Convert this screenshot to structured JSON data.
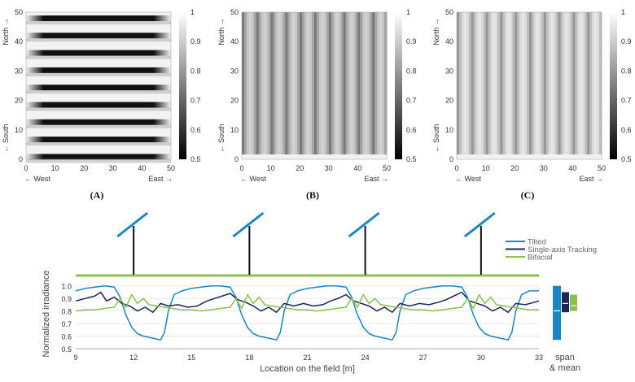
{
  "colors": {
    "tilted": "#1b86c2",
    "tracking": "#1c2557",
    "bifacial": "#8cc04e",
    "ground_line": "#8cc04e",
    "post": "#111111"
  },
  "chart_data": [
    {
      "type": "heatmap",
      "panel": "(A)",
      "pattern": "horizontal-rows",
      "xlim": [
        0,
        50
      ],
      "ylim": [
        0,
        50
      ],
      "xticks": [
        "0",
        "10",
        "20",
        "30",
        "40",
        "50"
      ],
      "yticks": [
        "0",
        "10",
        "20",
        "30",
        "40",
        "50"
      ],
      "x_left_label": "← West",
      "x_right_label": "East →",
      "y_top_label": "North →",
      "y_bottom_label": "← South",
      "colorbar": {
        "range": [
          0.5,
          1
        ],
        "ticks": [
          "1",
          "0.9",
          "0.8",
          "0.7",
          "0.6",
          "0.5"
        ]
      }
    },
    {
      "type": "heatmap",
      "panel": "(B)",
      "pattern": "vertical-columns",
      "xlim": [
        0,
        50
      ],
      "ylim": [
        0,
        50
      ],
      "xticks": [
        "0",
        "10",
        "20",
        "30",
        "40",
        "50"
      ],
      "yticks": [
        "0",
        "10",
        "20",
        "30",
        "40",
        "50"
      ],
      "x_left_label": "← West",
      "x_right_label": "East →",
      "y_top_label": "North →",
      "y_bottom_label": "← South",
      "colorbar": {
        "range": [
          0.5,
          1
        ],
        "ticks": [
          "1",
          "0.9",
          "0.8",
          "0.7",
          "0.6",
          "0.5"
        ]
      }
    },
    {
      "type": "heatmap",
      "panel": "(C)",
      "pattern": "vertical-columns-light",
      "xlim": [
        0,
        50
      ],
      "ylim": [
        0,
        50
      ],
      "xticks": [
        "0",
        "10",
        "20",
        "30",
        "40",
        "50"
      ],
      "yticks": [
        "0",
        "10",
        "20",
        "30",
        "40",
        "50"
      ],
      "x_left_label": "← West",
      "x_right_label": "East →",
      "y_top_label": "North →",
      "y_bottom_label": "← South",
      "colorbar": {
        "range": [
          0.5,
          1
        ],
        "ticks": [
          "1",
          "0.9",
          "0.8",
          "0.7",
          "0.6",
          "0.5"
        ]
      }
    },
    {
      "type": "line",
      "xlabel": "Location on the field [m]",
      "ylabel": "Normalized irradiance",
      "xlim": [
        9,
        33
      ],
      "ylim": [
        0.5,
        1.05
      ],
      "xticks": [
        "9",
        "12",
        "15",
        "18",
        "21",
        "24",
        "27",
        "30",
        "33"
      ],
      "yticks": [
        "0.5",
        "0.6",
        "0.7",
        "0.8",
        "0.9",
        "1.0"
      ],
      "module_positions": [
        12,
        18,
        24,
        30
      ],
      "legend": [
        "Tilted",
        "Single-axis Tracking",
        "Bifacial"
      ],
      "legend_position": "top-right",
      "side_label": [
        "span",
        "& mean"
      ],
      "series": [
        {
          "name": "Tilted",
          "x": [
            9,
            9.5,
            10,
            10.5,
            11,
            11.3,
            11.6,
            11.9,
            12.2,
            12.5,
            12.8,
            13.1,
            13.4,
            13.6,
            13.8,
            14.1,
            14.5,
            15,
            15.5,
            16,
            16.5,
            17,
            17.3,
            17.6,
            17.9,
            18.2,
            18.5,
            18.8,
            19.1,
            19.4,
            19.6,
            19.8,
            20.1,
            20.5,
            21,
            21.5,
            22,
            22.5,
            23,
            23.3,
            23.6,
            23.9,
            24.2,
            24.5,
            24.8,
            25.1,
            25.4,
            25.6,
            25.8,
            26.1,
            26.5,
            27,
            27.5,
            28,
            28.5,
            29,
            29.3,
            29.6,
            29.9,
            30.2,
            30.5,
            30.8,
            31.1,
            31.4,
            31.6,
            31.8,
            32.1,
            32.5,
            33
          ],
          "values": [
            0.96,
            0.98,
            0.99,
            1.0,
            0.99,
            0.91,
            0.77,
            0.67,
            0.62,
            0.6,
            0.59,
            0.58,
            0.57,
            0.63,
            0.8,
            0.93,
            0.96,
            0.98,
            0.99,
            1.0,
            1.0,
            0.99,
            0.91,
            0.77,
            0.67,
            0.62,
            0.6,
            0.59,
            0.58,
            0.57,
            0.63,
            0.8,
            0.93,
            0.96,
            0.98,
            0.99,
            1.0,
            1.0,
            0.99,
            0.91,
            0.77,
            0.67,
            0.62,
            0.6,
            0.59,
            0.58,
            0.57,
            0.63,
            0.8,
            0.93,
            0.96,
            0.98,
            0.99,
            1.0,
            1.0,
            0.99,
            0.91,
            0.77,
            0.67,
            0.62,
            0.6,
            0.59,
            0.58,
            0.57,
            0.63,
            0.8,
            0.93,
            0.96,
            0.96
          ]
        },
        {
          "name": "Single-axis Tracking",
          "x": [
            9,
            9.5,
            10,
            10.3,
            10.6,
            11,
            11.4,
            11.8,
            12.2,
            12.6,
            13,
            13.4,
            13.8,
            14.3,
            14.8,
            15.3,
            15.8,
            16.2,
            16.6,
            17,
            17.4,
            17.8,
            18.2,
            18.6,
            19,
            19.4,
            19.8,
            20.3,
            20.8,
            21.3,
            21.8,
            22.2,
            22.6,
            23,
            23.4,
            23.8,
            24.2,
            24.6,
            25,
            25.4,
            25.8,
            26.3,
            26.8,
            27.3,
            27.8,
            28.2,
            28.6,
            29,
            29.4,
            29.8,
            30.2,
            30.6,
            31,
            31.4,
            31.8,
            32.3,
            33
          ],
          "values": [
            0.88,
            0.9,
            0.92,
            0.95,
            0.88,
            0.91,
            0.86,
            0.84,
            0.8,
            0.83,
            0.79,
            0.86,
            0.84,
            0.85,
            0.83,
            0.84,
            0.88,
            0.9,
            0.92,
            0.94,
            0.89,
            0.87,
            0.84,
            0.8,
            0.83,
            0.79,
            0.86,
            0.84,
            0.86,
            0.84,
            0.85,
            0.88,
            0.9,
            0.93,
            0.88,
            0.86,
            0.84,
            0.8,
            0.83,
            0.79,
            0.86,
            0.84,
            0.86,
            0.85,
            0.87,
            0.89,
            0.92,
            0.95,
            0.88,
            0.86,
            0.84,
            0.8,
            0.83,
            0.79,
            0.86,
            0.85,
            0.88
          ]
        },
        {
          "name": "Bifacial",
          "x": [
            9,
            9.5,
            10,
            10.5,
            11,
            11.3,
            11.6,
            11.9,
            12.2,
            12.5,
            12.8,
            13.2,
            13.6,
            14,
            14.5,
            15,
            15.5,
            16,
            16.5,
            17,
            17.3,
            17.6,
            17.9,
            18.2,
            18.5,
            18.8,
            19.2,
            19.6,
            20,
            20.5,
            21,
            21.5,
            22,
            22.5,
            23,
            23.3,
            23.6,
            23.9,
            24.2,
            24.5,
            24.8,
            25.2,
            25.6,
            26,
            26.5,
            27,
            27.5,
            28,
            28.5,
            29,
            29.3,
            29.6,
            29.9,
            30.2,
            30.5,
            30.8,
            31.2,
            31.6,
            32,
            32.5,
            33
          ],
          "values": [
            0.8,
            0.81,
            0.81,
            0.82,
            0.83,
            0.9,
            0.83,
            0.93,
            0.86,
            0.9,
            0.85,
            0.84,
            0.83,
            0.82,
            0.81,
            0.81,
            0.8,
            0.81,
            0.82,
            0.83,
            0.9,
            0.82,
            0.93,
            0.86,
            0.91,
            0.85,
            0.84,
            0.83,
            0.82,
            0.81,
            0.81,
            0.8,
            0.81,
            0.82,
            0.83,
            0.9,
            0.83,
            0.93,
            0.86,
            0.9,
            0.85,
            0.84,
            0.83,
            0.82,
            0.81,
            0.81,
            0.8,
            0.81,
            0.82,
            0.83,
            0.9,
            0.82,
            0.93,
            0.86,
            0.91,
            0.85,
            0.84,
            0.83,
            0.82,
            0.81,
            0.81
          ]
        }
      ]
    }
  ]
}
